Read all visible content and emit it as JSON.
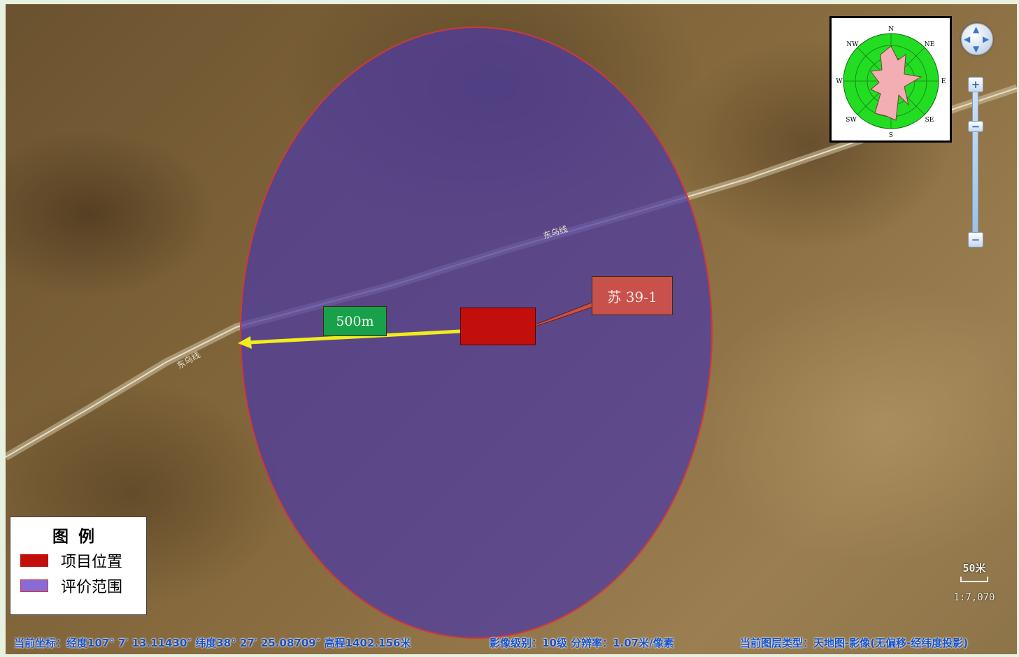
{
  "map": {
    "road_label_1": "东乌线",
    "road_label_2": "东乌线",
    "distance_label": "500m",
    "site_callout": "苏 39-1",
    "colors": {
      "project_location": "#c30f0c",
      "assessment_area_fill": "#4b3aa5",
      "assessment_area_border": "#d0383a",
      "distance_arrow": "#f2ec1c",
      "distance_label_bg": "#19a04a",
      "callout_bg": "#c8524b"
    }
  },
  "windrose": {
    "directions": {
      "n": "N",
      "ne": "NE",
      "e": "E",
      "se": "SE",
      "s": "S",
      "sw": "SW",
      "w": "W",
      "nw": "NW"
    },
    "colors": {
      "background": "#22dd22",
      "petals": "#f2aeb3"
    }
  },
  "nav": {
    "pan_icon": "pan-arrows-icon",
    "zoom_in_label": "+",
    "zoom_out_label": "−",
    "handle_label": "−"
  },
  "legend": {
    "title": "图例",
    "items": [
      {
        "label": "项目位置",
        "color": "#c30f0c"
      },
      {
        "label": "评价范围",
        "color": "#8a6bd3"
      }
    ]
  },
  "scalebar": {
    "distance": "50米",
    "ratio": "1:7,070"
  },
  "status_bar": {
    "coordinates": "当前坐标：经度107° 7′ 13.11430″ 纬度38° 27′ 25.08709″ 高程1402.156米",
    "imagery_level": "影像级别：10级 分辨率：1.07米/像素",
    "layer_type": "当前图层类型：天地图-影像(无偏移-经纬度投影)"
  }
}
